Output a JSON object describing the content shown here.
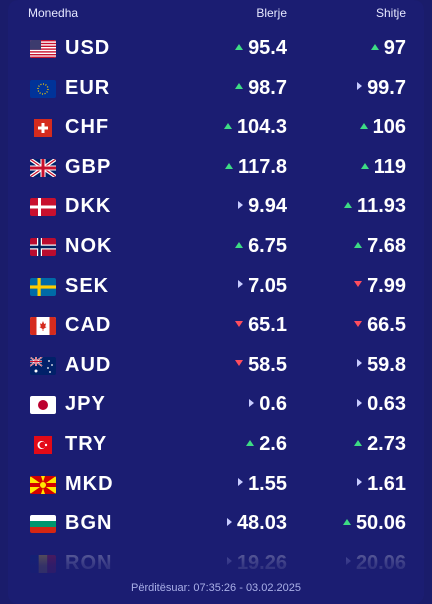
{
  "header": {
    "currency": "Monedha",
    "buy": "Blerje",
    "sell": "Shitje"
  },
  "rates": [
    {
      "code": "USD",
      "buy": "95.4",
      "buy_trend": "up",
      "sell": "97",
      "sell_trend": "up",
      "flag": "us-flag-icon"
    },
    {
      "code": "EUR",
      "buy": "98.7",
      "buy_trend": "up",
      "sell": "99.7",
      "sell_trend": "same",
      "flag": "eu-flag-icon"
    },
    {
      "code": "CHF",
      "buy": "104.3",
      "buy_trend": "up",
      "sell": "106",
      "sell_trend": "up",
      "flag": "ch-flag-icon"
    },
    {
      "code": "GBP",
      "buy": "117.8",
      "buy_trend": "up",
      "sell": "119",
      "sell_trend": "up",
      "flag": "gb-flag-icon"
    },
    {
      "code": "DKK",
      "buy": "9.94",
      "buy_trend": "same",
      "sell": "11.93",
      "sell_trend": "up",
      "flag": "dk-flag-icon"
    },
    {
      "code": "NOK",
      "buy": "6.75",
      "buy_trend": "up",
      "sell": "7.68",
      "sell_trend": "up",
      "flag": "no-flag-icon"
    },
    {
      "code": "SEK",
      "buy": "7.05",
      "buy_trend": "same",
      "sell": "7.99",
      "sell_trend": "down",
      "flag": "se-flag-icon"
    },
    {
      "code": "CAD",
      "buy": "65.1",
      "buy_trend": "down",
      "sell": "66.5",
      "sell_trend": "down",
      "flag": "ca-flag-icon"
    },
    {
      "code": "AUD",
      "buy": "58.5",
      "buy_trend": "down",
      "sell": "59.8",
      "sell_trend": "same",
      "flag": "au-flag-icon"
    },
    {
      "code": "JPY",
      "buy": "0.6",
      "buy_trend": "same",
      "sell": "0.63",
      "sell_trend": "same",
      "flag": "jp-flag-icon"
    },
    {
      "code": "TRY",
      "buy": "2.6",
      "buy_trend": "up",
      "sell": "2.73",
      "sell_trend": "up",
      "flag": "tr-flag-icon"
    },
    {
      "code": "MKD",
      "buy": "1.55",
      "buy_trend": "same",
      "sell": "1.61",
      "sell_trend": "same",
      "flag": "mk-flag-icon"
    },
    {
      "code": "BGN",
      "buy": "48.03",
      "buy_trend": "same",
      "sell": "50.06",
      "sell_trend": "up",
      "flag": "bg-flag-icon"
    },
    {
      "code": "RON",
      "buy": "19.26",
      "buy_trend": "same",
      "sell": "20.06",
      "sell_trend": "same",
      "flag": "ro-flag-icon"
    }
  ],
  "footer": {
    "updated": "Përditësuar: 07:35:26 - 03.02.2025"
  },
  "colors": {
    "background": "#1b1d72",
    "up": "#3ddc84",
    "down": "#ff4d5e",
    "same": "#c8ccff"
  }
}
